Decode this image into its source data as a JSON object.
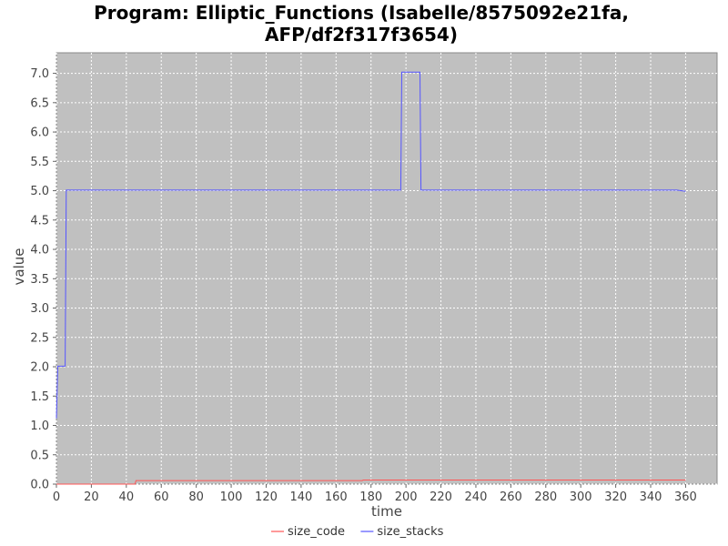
{
  "chart_data": {
    "type": "line",
    "title": "Program: Elliptic_Functions (Isabelle/8575092e21fa, AFP/df2f317f3654)",
    "title_lines": [
      "Program: Elliptic_Functions (Isabelle/8575092e21fa,",
      "AFP/df2f317f3654)"
    ],
    "xlabel": "time",
    "ylabel": "value",
    "xlim": [
      0,
      378
    ],
    "ylim": [
      0,
      7.35
    ],
    "x_ticks": [
      0,
      20,
      40,
      60,
      80,
      100,
      120,
      140,
      160,
      180,
      200,
      220,
      240,
      260,
      280,
      300,
      320,
      340,
      360
    ],
    "y_ticks": [
      0.0,
      0.5,
      1.0,
      1.5,
      2.0,
      2.5,
      3.0,
      3.5,
      4.0,
      4.5,
      5.0,
      5.5,
      6.0,
      6.5,
      7.0
    ],
    "y_tick_labels": [
      "0.0",
      "0.5",
      "1.0",
      "1.5",
      "2.0",
      "2.5",
      "3.0",
      "3.5",
      "4.0",
      "4.5",
      "5.0",
      "5.5",
      "6.0",
      "6.5",
      "7.0"
    ],
    "grid": true,
    "background": "#c0c0c0",
    "legend_position": "bottom-center",
    "series": [
      {
        "name": "size_code",
        "color": "#ff5555",
        "points": [
          [
            0,
            0.0
          ],
          [
            45,
            0.0
          ],
          [
            45.5,
            0.06
          ],
          [
            175,
            0.06
          ],
          [
            175.5,
            0.07
          ],
          [
            360,
            0.07
          ]
        ]
      },
      {
        "name": "size_stacks",
        "color": "#5555ff",
        "points": [
          [
            0,
            1.12
          ],
          [
            0.8,
            2.01
          ],
          [
            5,
            2.01
          ],
          [
            5.6,
            5.01
          ],
          [
            197,
            5.01
          ],
          [
            197.6,
            7.02
          ],
          [
            208,
            7.02
          ],
          [
            208.6,
            5.01
          ],
          [
            355,
            5.01
          ],
          [
            360,
            4.99
          ]
        ]
      }
    ]
  }
}
